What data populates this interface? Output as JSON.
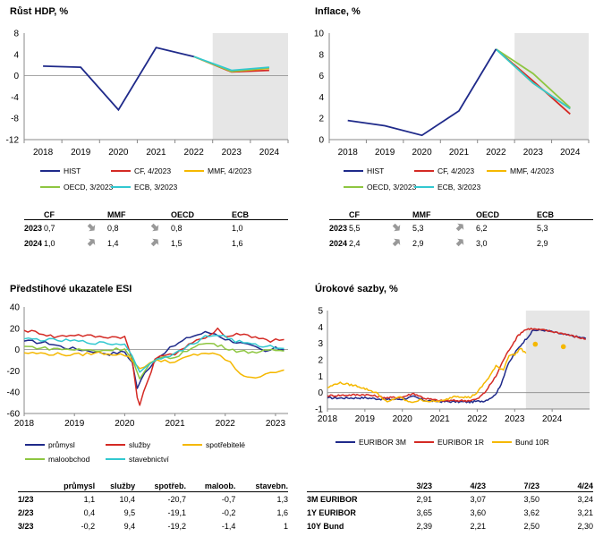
{
  "chart_data": [
    {
      "id": "hdp",
      "type": "line",
      "title": "Růst HDP, %",
      "x": [
        "2018",
        "2019",
        "2020",
        "2021",
        "2022",
        "2023",
        "2024"
      ],
      "ylim": [
        -12,
        8
      ],
      "yticks": [
        8,
        4,
        0,
        -4,
        -8,
        -12
      ],
      "shaded_from": "2022",
      "series": [
        {
          "name": "HIST",
          "color": "#1f2a8a",
          "values": [
            1.8,
            1.6,
            -6.4,
            5.3,
            3.6,
            null,
            null
          ]
        },
        {
          "name": "CF, 4/2023",
          "color": "#d42a24",
          "values": [
            null,
            null,
            null,
            null,
            3.6,
            0.7,
            1.0
          ]
        },
        {
          "name": "MMF, 4/2023",
          "color": "#f5b800",
          "values": [
            null,
            null,
            null,
            null,
            3.6,
            0.8,
            1.4
          ]
        },
        {
          "name": "OECD, 3/2023",
          "color": "#8ec641",
          "values": [
            null,
            null,
            null,
            null,
            3.6,
            0.8,
            1.5
          ]
        },
        {
          "name": "ECB, 3/2023",
          "color": "#32c8d0",
          "values": [
            null,
            null,
            null,
            null,
            3.6,
            1.0,
            1.6
          ]
        }
      ],
      "table": {
        "cols": [
          "CF",
          "MMF",
          "OECD",
          "ECB"
        ],
        "rows": [
          {
            "year": "2023",
            "vals": [
              "0,7",
              "0,8",
              "0,8",
              "1,0"
            ]
          },
          {
            "year": "2024",
            "vals": [
              "1,0",
              "1,4",
              "1,5",
              "1,6"
            ]
          }
        ]
      }
    },
    {
      "id": "inflace",
      "type": "line",
      "title": "Inflace, %",
      "x": [
        "2018",
        "2019",
        "2020",
        "2021",
        "2022",
        "2023",
        "2024"
      ],
      "ylim": [
        0,
        10
      ],
      "yticks": [
        10,
        8,
        6,
        4,
        2,
        0
      ],
      "shaded_from": "2022",
      "series": [
        {
          "name": "HIST",
          "color": "#1f2a8a",
          "values": [
            1.8,
            1.3,
            0.4,
            2.7,
            8.5,
            null,
            null
          ]
        },
        {
          "name": "CF, 4/2023",
          "color": "#d42a24",
          "values": [
            null,
            null,
            null,
            null,
            8.5,
            5.5,
            2.4
          ]
        },
        {
          "name": "MMF, 4/2023",
          "color": "#f5b800",
          "values": [
            null,
            null,
            null,
            null,
            8.5,
            5.3,
            2.9
          ]
        },
        {
          "name": "OECD, 3/2023",
          "color": "#8ec641",
          "values": [
            null,
            null,
            null,
            null,
            8.5,
            6.2,
            3.0
          ]
        },
        {
          "name": "ECB, 3/2023",
          "color": "#32c8d0",
          "values": [
            null,
            null,
            null,
            null,
            8.5,
            5.3,
            2.9
          ]
        }
      ],
      "table": {
        "cols": [
          "CF",
          "MMF",
          "OECD",
          "ECB"
        ],
        "rows": [
          {
            "year": "2023",
            "vals": [
              "5,5",
              "5,3",
              "6,2",
              "5,3"
            ]
          },
          {
            "year": "2024",
            "vals": [
              "2,4",
              "2,9",
              "3,0",
              "2,9"
            ]
          }
        ]
      }
    },
    {
      "id": "esi",
      "type": "line",
      "title": "Předstihové ukazatele ESI",
      "xlabels": [
        "2018",
        "2019",
        "2020",
        "2021",
        "2022",
        "2023"
      ],
      "xrange": [
        2018,
        2023.25
      ],
      "ylim": [
        -60,
        40
      ],
      "yticks": [
        40,
        20,
        0,
        -20,
        -40,
        -60
      ],
      "series": [
        {
          "name": "průmysl",
          "color": "#1f2a8a",
          "anchors": [
            [
              2018,
              8
            ],
            [
              2018.5,
              6
            ],
            [
              2018.8,
              2
            ],
            [
              2019.3,
              -1
            ],
            [
              2019.7,
              -4
            ],
            [
              2020.0,
              -2
            ],
            [
              2020.15,
              -12
            ],
            [
              2020.25,
              -36
            ],
            [
              2020.4,
              -22
            ],
            [
              2020.6,
              -10
            ],
            [
              2020.8,
              -2
            ],
            [
              2021.0,
              4
            ],
            [
              2021.3,
              12
            ],
            [
              2021.6,
              16
            ],
            [
              2021.8,
              15
            ],
            [
              2022.0,
              10
            ],
            [
              2022.3,
              6
            ],
            [
              2022.6,
              2
            ],
            [
              2022.8,
              -2
            ],
            [
              2023.0,
              1.1
            ],
            [
              2023.08,
              0.4
            ],
            [
              2023.17,
              -0.2
            ]
          ]
        },
        {
          "name": "služby",
          "color": "#d42a24",
          "anchors": [
            [
              2018,
              18
            ],
            [
              2018.3,
              16
            ],
            [
              2018.6,
              12
            ],
            [
              2019.0,
              14
            ],
            [
              2019.5,
              12
            ],
            [
              2020.0,
              12
            ],
            [
              2020.15,
              -10
            ],
            [
              2020.25,
              -45
            ],
            [
              2020.3,
              -52
            ],
            [
              2020.45,
              -30
            ],
            [
              2020.6,
              -10
            ],
            [
              2020.8,
              -4
            ],
            [
              2021.0,
              -4
            ],
            [
              2021.2,
              2
            ],
            [
              2021.5,
              10
            ],
            [
              2021.7,
              14
            ],
            [
              2021.85,
              20
            ],
            [
              2022.0,
              12
            ],
            [
              2022.3,
              15
            ],
            [
              2022.6,
              12
            ],
            [
              2022.9,
              8
            ],
            [
              2023.0,
              10.4
            ],
            [
              2023.08,
              9.5
            ],
            [
              2023.17,
              9.4
            ]
          ]
        },
        {
          "name": "spotřebitelé",
          "color": "#f5b800",
          "anchors": [
            [
              2018,
              -3
            ],
            [
              2018.5,
              -4
            ],
            [
              2019.0,
              -5
            ],
            [
              2019.5,
              -3
            ],
            [
              2020.0,
              -5
            ],
            [
              2020.15,
              -10
            ],
            [
              2020.3,
              -18
            ],
            [
              2020.5,
              -12
            ],
            [
              2020.8,
              -10
            ],
            [
              2021.0,
              -12
            ],
            [
              2021.3,
              -6
            ],
            [
              2021.6,
              -3
            ],
            [
              2021.9,
              -6
            ],
            [
              2022.1,
              -12
            ],
            [
              2022.3,
              -24
            ],
            [
              2022.6,
              -26
            ],
            [
              2022.8,
              -24
            ],
            [
              2023.0,
              -20.7
            ],
            [
              2023.08,
              -19.1
            ],
            [
              2023.17,
              -19.2
            ]
          ]
        },
        {
          "name": "maloobchod",
          "color": "#8ec641",
          "anchors": [
            [
              2018,
              3
            ],
            [
              2018.5,
              1
            ],
            [
              2019.0,
              0
            ],
            [
              2019.5,
              -1
            ],
            [
              2020.0,
              1
            ],
            [
              2020.15,
              -8
            ],
            [
              2020.3,
              -28
            ],
            [
              2020.5,
              -14
            ],
            [
              2020.8,
              -6
            ],
            [
              2021.0,
              -8
            ],
            [
              2021.4,
              4
            ],
            [
              2021.7,
              6
            ],
            [
              2022.0,
              2
            ],
            [
              2022.3,
              -2
            ],
            [
              2022.7,
              -2
            ],
            [
              2023.0,
              -0.7
            ],
            [
              2023.08,
              -0.2
            ],
            [
              2023.17,
              -1.4
            ]
          ]
        },
        {
          "name": "stavebnictví",
          "color": "#32c8d0",
          "anchors": [
            [
              2018,
              10
            ],
            [
              2018.5,
              9
            ],
            [
              2019.0,
              8
            ],
            [
              2019.5,
              6
            ],
            [
              2020.0,
              5
            ],
            [
              2020.15,
              -5
            ],
            [
              2020.3,
              -22
            ],
            [
              2020.5,
              -12
            ],
            [
              2020.8,
              -6
            ],
            [
              2021.0,
              -4
            ],
            [
              2021.3,
              4
            ],
            [
              2021.6,
              12
            ],
            [
              2021.9,
              14
            ],
            [
              2022.2,
              8
            ],
            [
              2022.6,
              4
            ],
            [
              2022.9,
              3
            ],
            [
              2023.0,
              1.3
            ],
            [
              2023.08,
              1.6
            ],
            [
              2023.17,
              1
            ]
          ]
        }
      ],
      "table": {
        "cols": [
          "průmysl",
          "služby",
          "spotřeb.",
          "maloob.",
          "stavebn."
        ],
        "rows": [
          {
            "label": "1/23",
            "vals": [
              "1,1",
              "10,4",
              "-20,7",
              "-0,7",
              "1,3"
            ]
          },
          {
            "label": "2/23",
            "vals": [
              "0,4",
              "9,5",
              "-19,1",
              "-0,2",
              "1,6"
            ]
          },
          {
            "label": "3/23",
            "vals": [
              "-0,2",
              "9,4",
              "-19,2",
              "-1,4",
              "1"
            ]
          }
        ]
      }
    },
    {
      "id": "sazby",
      "type": "line",
      "title": "Úrokové sazby, %",
      "xlabels": [
        "2018",
        "2019",
        "2020",
        "2021",
        "2022",
        "2023",
        "2024"
      ],
      "xrange": [
        2018,
        2025
      ],
      "ylim": [
        -1,
        5
      ],
      "yticks": [
        5,
        4,
        3,
        2,
        1,
        0,
        -1
      ],
      "shaded_from_year": 2023.3,
      "series": [
        {
          "name": "EURIBOR 3M",
          "color": "#1f2a8a",
          "anchors": [
            [
              2018,
              -0.33
            ],
            [
              2019.0,
              -0.32
            ],
            [
              2019.6,
              -0.42
            ],
            [
              2020.0,
              -0.39
            ],
            [
              2020.3,
              -0.25
            ],
            [
              2020.6,
              -0.48
            ],
            [
              2021.0,
              -0.54
            ],
            [
              2021.8,
              -0.57
            ],
            [
              2022.2,
              -0.5
            ],
            [
              2022.45,
              -0.2
            ],
            [
              2022.6,
              0.3
            ],
            [
              2022.8,
              1.6
            ],
            [
              2023.0,
              2.4
            ],
            [
              2023.2,
              3.0
            ],
            [
              2023.35,
              3.4
            ],
            [
              2023.5,
              3.8
            ],
            [
              2023.8,
              3.8
            ],
            [
              2024.3,
              3.55
            ],
            [
              2024.9,
              3.3
            ]
          ]
        },
        {
          "name": "EURIBOR 1R",
          "color": "#d42a24",
          "anchors": [
            [
              2018,
              -0.19
            ],
            [
              2019.0,
              -0.12
            ],
            [
              2019.6,
              -0.32
            ],
            [
              2020.0,
              -0.27
            ],
            [
              2020.3,
              -0.05
            ],
            [
              2020.6,
              -0.35
            ],
            [
              2021.0,
              -0.5
            ],
            [
              2021.8,
              -0.48
            ],
            [
              2022.0,
              -0.4
            ],
            [
              2022.2,
              0.0
            ],
            [
              2022.5,
              1.0
            ],
            [
              2022.7,
              2.0
            ],
            [
              2022.9,
              2.8
            ],
            [
              2023.1,
              3.5
            ],
            [
              2023.25,
              3.8
            ],
            [
              2023.4,
              3.9
            ],
            [
              2023.8,
              3.8
            ],
            [
              2024.3,
              3.6
            ],
            [
              2024.9,
              3.25
            ]
          ]
        },
        {
          "name": "Bund 10R",
          "color": "#f5b800",
          "anchors": [
            [
              2018,
              0.3
            ],
            [
              2018.3,
              0.6
            ],
            [
              2018.8,
              0.4
            ],
            [
              2019.3,
              0.0
            ],
            [
              2019.6,
              -0.6
            ],
            [
              2019.9,
              -0.25
            ],
            [
              2020.2,
              -0.6
            ],
            [
              2020.5,
              -0.45
            ],
            [
              2020.8,
              -0.55
            ],
            [
              2021.1,
              -0.5
            ],
            [
              2021.4,
              -0.2
            ],
            [
              2021.8,
              -0.3
            ],
            [
              2022.0,
              0.0
            ],
            [
              2022.3,
              0.9
            ],
            [
              2022.5,
              1.6
            ],
            [
              2022.7,
              1.4
            ],
            [
              2022.85,
              2.3
            ],
            [
              2023.0,
              2.3
            ],
            [
              2023.15,
              2.7
            ],
            [
              2023.3,
              2.4
            ]
          ]
        }
      ],
      "bund_forecast_points": [
        {
          "x": 2023.55,
          "y": 2.95
        },
        {
          "x": 2024.3,
          "y": 2.8
        }
      ],
      "table": {
        "cols": [
          "3/23",
          "4/23",
          "7/23",
          "4/24"
        ],
        "rows": [
          {
            "label": "3M EURIBOR",
            "vals": [
              "2,91",
              "3,07",
              "3,50",
              "3,24"
            ]
          },
          {
            "label": "1Y EURIBOR",
            "vals": [
              "3,65",
              "3,60",
              "3,62",
              "3,21"
            ]
          },
          {
            "label": "10Y Bund",
            "vals": [
              "2,39",
              "2,21",
              "2,50",
              "2,30"
            ]
          }
        ]
      }
    }
  ]
}
